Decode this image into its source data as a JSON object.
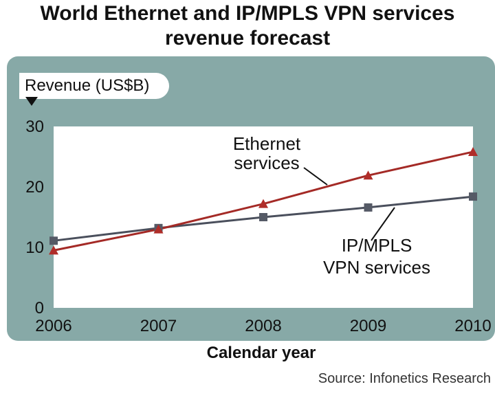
{
  "title_line1": "World Ethernet and IP/MPLS VPN services",
  "title_line2": "revenue forecast",
  "source": "Source:  Infonetics Research",
  "colors": {
    "panel": "#87a9a7",
    "ethernet": "#a42a26",
    "ipmpls": "#4a4f5c",
    "ethernet_marker": "#b02d29",
    "ipmpls_marker": "#555a66"
  },
  "chart_data": {
    "type": "line",
    "title": "World Ethernet and IP/MPLS VPN services revenue forecast",
    "xlabel": "Calendar year",
    "ylabel": "Revenue (US$B)",
    "categories": [
      "2006",
      "2007",
      "2008",
      "2009",
      "2010"
    ],
    "ylim": [
      0,
      30
    ],
    "yticks": [
      0,
      10,
      20,
      30
    ],
    "grid": false,
    "series": [
      {
        "name": "Ethernet services",
        "label_lines": [
          "Ethernet",
          "services"
        ],
        "marker": "triangle",
        "values": [
          9.5,
          13.0,
          17.2,
          21.9,
          25.8
        ]
      },
      {
        "name": "IP/MPLS VPN services",
        "label_lines": [
          "IP/MPLS",
          "VPN services"
        ],
        "marker": "square",
        "values": [
          11.1,
          13.2,
          15.0,
          16.6,
          18.4
        ]
      }
    ]
  }
}
